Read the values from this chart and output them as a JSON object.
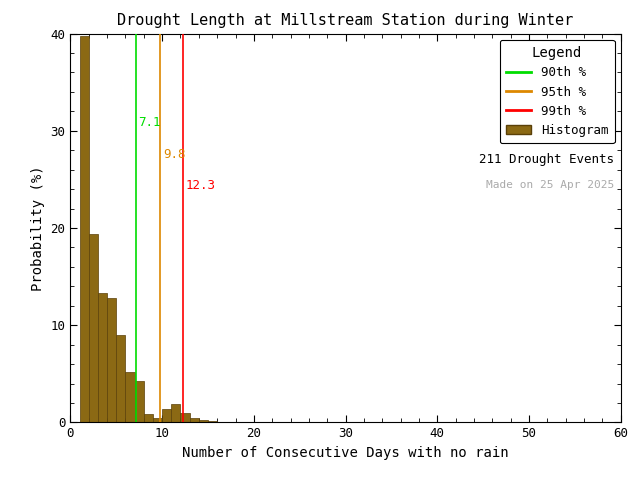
{
  "title": "Drought Length at Millstream Station during Winter",
  "xlabel": "Number of Consecutive Days with no rain",
  "ylabel": "Probability (%)",
  "xlim": [
    0,
    60
  ],
  "ylim": [
    0,
    40
  ],
  "xticks": [
    0,
    10,
    20,
    30,
    40,
    50,
    60
  ],
  "yticks": [
    0,
    10,
    20,
    30,
    40
  ],
  "bar_edges": [
    1,
    2,
    3,
    4,
    5,
    6,
    7,
    8,
    9,
    10,
    11,
    12,
    13,
    14,
    15,
    16
  ],
  "bar_heights": [
    39.8,
    19.4,
    13.3,
    12.8,
    9.0,
    5.2,
    4.3,
    0.9,
    0.5,
    1.4,
    1.9,
    1.0,
    0.5,
    0.2,
    0.1
  ],
  "bar_color": "#8B6914",
  "bar_edgecolor": "#5a4008",
  "percentile_90": 7.1,
  "percentile_95": 9.8,
  "percentile_99": 12.3,
  "color_90": "#00dd00",
  "color_95": "#dd8800",
  "color_99": "#ff0000",
  "n_events": "211 Drought Events",
  "made_on": "Made on 25 Apr 2025",
  "legend_title": "Legend",
  "background_color": "#ffffff",
  "font_color": "#000000",
  "made_on_color": "#aaaaaa",
  "ann_90_y": 30.5,
  "ann_95_y": 27.2,
  "ann_99_y": 24.0
}
